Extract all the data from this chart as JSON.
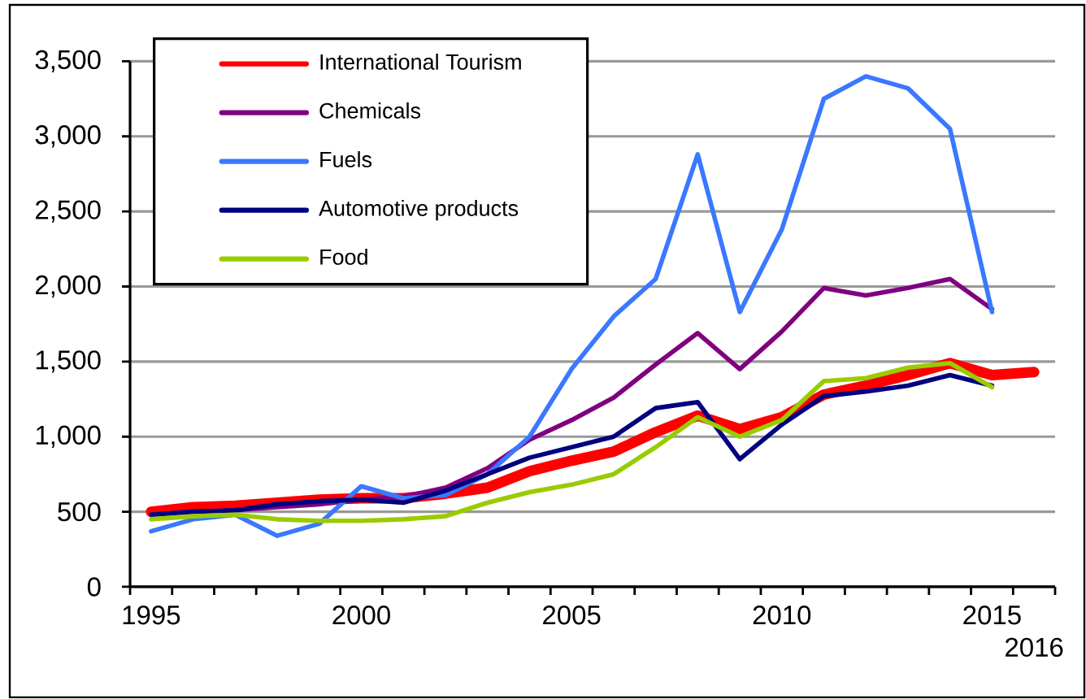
{
  "chart_data": {
    "type": "line",
    "categories": [
      "1995",
      null,
      null,
      null,
      null,
      "2000",
      null,
      null,
      null,
      null,
      "2005",
      null,
      null,
      null,
      null,
      "2010",
      null,
      null,
      null,
      null,
      "2015",
      "2016"
    ],
    "series": [
      {
        "name": "International Tourism",
        "color": "#ff0000",
        "values": [
          500,
          530,
          540,
          560,
          580,
          590,
          590,
          620,
          660,
          770,
          840,
          900,
          1030,
          1140,
          1050,
          1130,
          1280,
          1340,
          1410,
          1490,
          1410,
          1430
        ]
      },
      {
        "name": "Chemicals",
        "color": "#800080",
        "values": [
          480,
          500,
          510,
          530,
          550,
          580,
          600,
          660,
          790,
          980,
          1110,
          1260,
          1480,
          1690,
          1450,
          1700,
          1990,
          1940,
          1990,
          2050,
          1850,
          null
        ]
      },
      {
        "name": "Fuels",
        "color": "#3a78ff",
        "values": [
          370,
          450,
          480,
          340,
          420,
          670,
          590,
          610,
          750,
          1000,
          1450,
          1800,
          2050,
          2880,
          1830,
          2380,
          3250,
          3400,
          3320,
          3050,
          1830,
          null
        ]
      },
      {
        "name": "Automotive products",
        "color": "#000080",
        "values": [
          480,
          500,
          510,
          550,
          570,
          580,
          560,
          640,
          750,
          860,
          930,
          1000,
          1190,
          1230,
          850,
          1080,
          1270,
          1300,
          1340,
          1410,
          1340,
          null
        ]
      },
      {
        "name": "Food",
        "color": "#99cc00",
        "values": [
          450,
          470,
          480,
          450,
          440,
          440,
          450,
          470,
          560,
          630,
          680,
          750,
          930,
          1130,
          1000,
          1110,
          1370,
          1390,
          1460,
          1490,
          1330,
          null
        ]
      }
    ],
    "ylim": [
      0,
      3500
    ],
    "yticks": [
      0,
      500,
      {
        "value": 1000,
        "label": "1,000"
      },
      {
        "value": 1500,
        "label": "1,500"
      },
      {
        "value": 2000,
        "label": "2,000"
      },
      {
        "value": 2500,
        "label": "2,500"
      },
      {
        "value": 3000,
        "label": "3,000"
      },
      {
        "value": 3500,
        "label": "3,500"
      }
    ],
    "grid": "y",
    "legend": "top left",
    "marker": "none",
    "line_style": "solid"
  }
}
